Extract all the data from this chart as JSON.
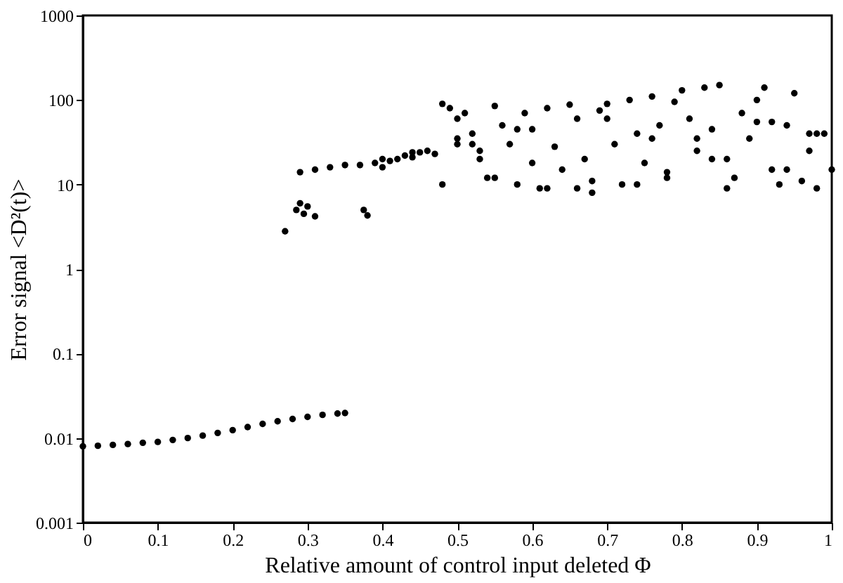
{
  "chart_data": {
    "type": "scatter",
    "xlabel": "Relative amount of control input deleted  Φ",
    "ylabel": "Error signal <D²(t)>",
    "log": "y",
    "grid": false,
    "marker": "circle",
    "xlim": [
      0,
      1
    ],
    "xticks": [
      0,
      0.1,
      0.2,
      0.3,
      0.4,
      0.5,
      0.6,
      0.7,
      0.8,
      0.9,
      1
    ],
    "ylim": [
      0.001,
      1000
    ],
    "yticks": [
      0.001,
      0.01,
      0.1,
      1,
      10,
      100,
      1000
    ],
    "series": [
      {
        "color": "#000000",
        "x": [
          0,
          0.02,
          0.04,
          0.06,
          0.08,
          0.1,
          0.12,
          0.14,
          0.16,
          0.18,
          0.2,
          0.22,
          0.24,
          0.26,
          0.28,
          0.3,
          0.32,
          0.34,
          0.35
        ],
        "values": [
          0.008,
          0.0081,
          0.0083,
          0.0085,
          0.0088,
          0.009,
          0.0095,
          0.01,
          0.0107,
          0.0115,
          0.0124,
          0.0135,
          0.0147,
          0.0158,
          0.0168,
          0.0178,
          0.0188,
          0.0195,
          0.0198
        ]
      },
      {
        "color": "#000000",
        "x": [
          0.27,
          0.285,
          0.29,
          0.295,
          0.3,
          0.31,
          0.375,
          0.38,
          0.29,
          0.31,
          0.33,
          0.35,
          0.37,
          0.39,
          0.4,
          0.41,
          0.42,
          0.43,
          0.44,
          0.45,
          0.46,
          0.47,
          0.48,
          0.49,
          0.5,
          0.5,
          0.51,
          0.52,
          0.53,
          0.54,
          0.55,
          0.56,
          0.57,
          0.58,
          0.59,
          0.6,
          0.61,
          0.62,
          0.63,
          0.64,
          0.65,
          0.66,
          0.67,
          0.68,
          0.69,
          0.7,
          0.71,
          0.72,
          0.73,
          0.74,
          0.75,
          0.76,
          0.77,
          0.78,
          0.79,
          0.8,
          0.81,
          0.82,
          0.83,
          0.84,
          0.85,
          0.86,
          0.87,
          0.88,
          0.89,
          0.9,
          0.91,
          0.92,
          0.93,
          0.94,
          0.95,
          0.96,
          0.97,
          0.98,
          0.99,
          1,
          0.52,
          0.55,
          0.58,
          0.62,
          0.66,
          0.7,
          0.74,
          0.78,
          0.82,
          0.86,
          0.9,
          0.94,
          0.98,
          0.48,
          0.53,
          0.6,
          0.68,
          0.76,
          0.84,
          0.92,
          0.97,
          0.4,
          0.44,
          0.5
        ],
        "values": [
          2.8,
          5,
          6,
          4.5,
          5.5,
          4.2,
          5,
          4.3,
          14,
          15,
          16,
          17,
          17,
          18,
          16,
          19,
          20,
          22,
          21,
          24,
          25,
          23,
          90,
          80,
          60,
          30,
          70,
          40,
          20,
          12,
          85,
          50,
          30,
          10,
          70,
          45,
          9,
          80,
          28,
          15,
          88,
          60,
          20,
          8,
          75,
          90,
          30,
          10,
          100,
          40,
          18,
          110,
          50,
          12,
          95,
          130,
          60,
          25,
          140,
          45,
          150,
          20,
          12,
          70,
          35,
          100,
          140,
          15,
          10,
          50,
          120,
          11,
          25,
          9,
          40,
          15,
          30,
          12,
          45,
          9,
          9,
          60,
          10,
          14,
          35,
          9,
          55,
          15,
          40,
          10,
          25,
          18,
          11,
          35,
          20,
          55,
          40,
          20,
          24,
          35
        ]
      }
    ]
  }
}
